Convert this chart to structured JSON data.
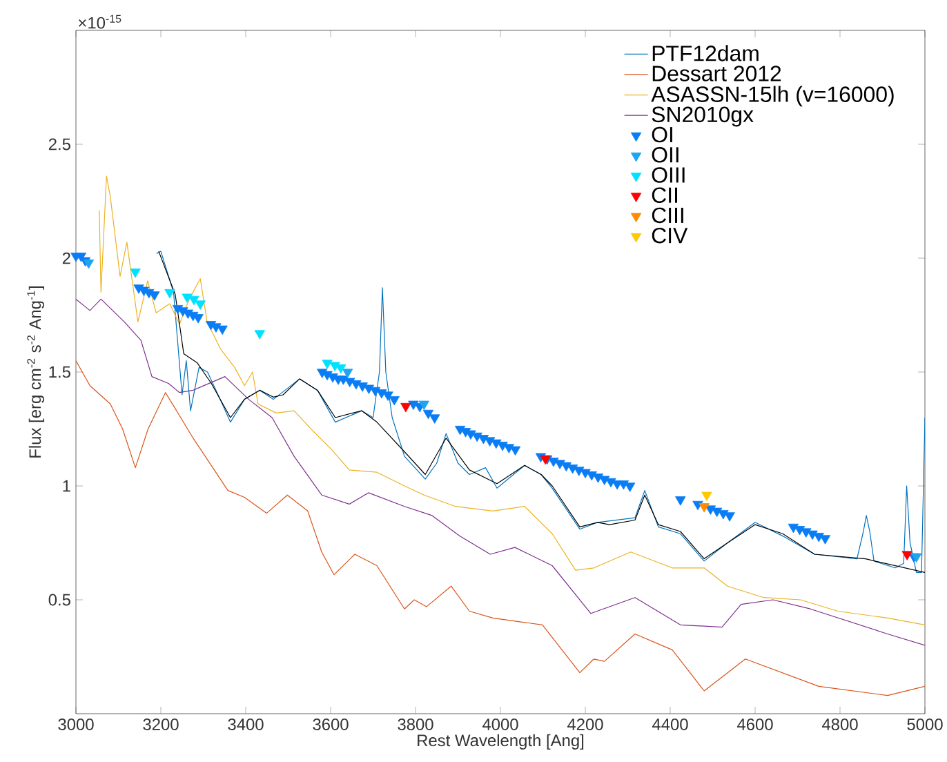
{
  "chart_data": {
    "type": "line",
    "xlabel": "Rest Wavelength [Ang]",
    "ylabel": "Flux [erg cm$^{-2}$ s$^{-2}$ Ang$^{-1}$]",
    "annotations": [
      "×10$^{-15}$"
    ],
    "xlim": [
      3000,
      5000
    ],
    "ylim": [
      0,
      3
    ],
    "xticks": [
      3000,
      3200,
      3400,
      3600,
      3800,
      4000,
      4200,
      4400,
      4600,
      4800,
      5000
    ],
    "yticks": [
      0.5,
      1,
      1.5,
      2,
      2.5
    ],
    "legend": "top right",
    "series": [
      {
        "name": "PTF12dam",
        "color": "#0072bd",
        "x": [
          3190,
          3200,
          3230,
          3250,
          3260,
          3270,
          3290,
          3310,
          3330,
          3364,
          3397,
          3433,
          3465,
          3527,
          3569,
          3611,
          3673,
          3700,
          3715,
          3722,
          3730,
          3745,
          3774,
          3823,
          3850,
          3872,
          3900,
          3927,
          3965,
          3992,
          4057,
          4096,
          4122,
          4187,
          4229,
          4317,
          4340,
          4372,
          4424,
          4480,
          4535,
          4600,
          4665,
          4740,
          4840,
          4855,
          4862,
          4870,
          4880,
          4930,
          4950,
          4957,
          4965,
          4980,
          4992,
          5000
        ],
        "values": [
          2.02,
          2.03,
          1.85,
          1.4,
          1.55,
          1.33,
          1.52,
          1.5,
          1.42,
          1.28,
          1.38,
          1.42,
          1.38,
          1.47,
          1.42,
          1.28,
          1.33,
          1.3,
          1.5,
          1.87,
          1.5,
          1.3,
          1.13,
          1.03,
          1.1,
          1.23,
          1.1,
          1.05,
          1.08,
          0.99,
          1.09,
          1.05,
          0.99,
          0.81,
          0.84,
          0.86,
          0.98,
          0.82,
          0.79,
          0.67,
          0.75,
          0.84,
          0.78,
          0.7,
          0.68,
          0.8,
          0.87,
          0.8,
          0.67,
          0.64,
          0.66,
          1.0,
          0.75,
          0.62,
          0.62,
          1.3
        ]
      },
      {
        "name": "Dessart 2012",
        "color": "#d95319",
        "x": [
          3000,
          3033,
          3081,
          3110,
          3140,
          3170,
          3211,
          3276,
          3358,
          3397,
          3449,
          3498,
          3546,
          3579,
          3608,
          3657,
          3709,
          3774,
          3797,
          3826,
          3884,
          3927,
          3982,
          4099,
          4187,
          4220,
          4245,
          4317,
          4405,
          4480,
          4577,
          4750,
          4912,
          5000
        ],
        "values": [
          1.55,
          1.44,
          1.36,
          1.25,
          1.08,
          1.25,
          1.41,
          1.21,
          0.98,
          0.95,
          0.88,
          0.96,
          0.89,
          0.71,
          0.61,
          0.7,
          0.65,
          0.46,
          0.5,
          0.47,
          0.56,
          0.45,
          0.42,
          0.39,
          0.18,
          0.24,
          0.23,
          0.35,
          0.28,
          0.1,
          0.24,
          0.12,
          0.08,
          0.12
        ]
      },
      {
        "name": "ASASSN-15lh (v=16000)",
        "color": "#edb120",
        "x": [
          3055,
          3059,
          3072,
          3081,
          3104,
          3120,
          3146,
          3169,
          3189,
          3221,
          3244,
          3267,
          3293,
          3309,
          3341,
          3374,
          3397,
          3416,
          3429,
          3472,
          3514,
          3559,
          3602,
          3644,
          3709,
          3774,
          3820,
          3894,
          3982,
          4057,
          4122,
          4177,
          4220,
          4307,
          4405,
          4480,
          4535,
          4620,
          4707,
          4795,
          4912,
          5000
        ],
        "values": [
          2.21,
          1.85,
          2.36,
          2.27,
          1.92,
          2.07,
          1.72,
          1.9,
          1.76,
          1.8,
          1.71,
          1.82,
          1.91,
          1.72,
          1.6,
          1.52,
          1.44,
          1.5,
          1.36,
          1.32,
          1.33,
          1.24,
          1.16,
          1.07,
          1.06,
          1.0,
          0.96,
          0.91,
          0.89,
          0.91,
          0.79,
          0.63,
          0.64,
          0.71,
          0.64,
          0.64,
          0.56,
          0.51,
          0.5,
          0.45,
          0.42,
          0.39
        ]
      },
      {
        "name": "SN2010gx",
        "color": "#7e2f8e",
        "x": [
          3000,
          3033,
          3059,
          3114,
          3153,
          3179,
          3218,
          3244,
          3276,
          3351,
          3407,
          3462,
          3514,
          3579,
          3644,
          3689,
          3774,
          3839,
          3904,
          3976,
          4034,
          4122,
          4213,
          4317,
          4424,
          4522,
          4567,
          4642,
          4730,
          4912,
          5000
        ],
        "values": [
          1.82,
          1.77,
          1.82,
          1.72,
          1.64,
          1.48,
          1.45,
          1.41,
          1.42,
          1.48,
          1.38,
          1.3,
          1.13,
          0.96,
          0.92,
          0.97,
          0.91,
          0.87,
          0.78,
          0.7,
          0.73,
          0.65,
          0.44,
          0.51,
          0.39,
          0.38,
          0.48,
          0.5,
          0.46,
          0.35,
          0.3
        ]
      },
      {
        "color": "#000000",
        "x": [
          3195,
          3234,
          3254,
          3286,
          3319,
          3364,
          3397,
          3433,
          3465,
          3488,
          3527,
          3569,
          3611,
          3673,
          3709,
          3774,
          3823,
          3872,
          3927,
          3992,
          4057,
          4096,
          4122,
          4187,
          4229,
          4257,
          4317,
          4340,
          4372,
          4424,
          4480,
          4535,
          4600,
          4665,
          4740,
          4860,
          5000
        ],
        "values": [
          2.03,
          1.84,
          1.58,
          1.54,
          1.45,
          1.3,
          1.38,
          1.42,
          1.39,
          1.4,
          1.47,
          1.42,
          1.3,
          1.33,
          1.28,
          1.15,
          1.05,
          1.21,
          1.07,
          1.01,
          1.09,
          1.05,
          1.0,
          0.82,
          0.84,
          0.83,
          0.85,
          0.96,
          0.83,
          0.8,
          0.68,
          0.75,
          0.83,
          0.79,
          0.7,
          0.68,
          0.62
        ]
      },
      {
        "name": "OI",
        "type": "scatter",
        "marker": "triangle",
        "color": "#0a7df5",
        "x": [
          3000,
          3012,
          3022,
          3148,
          3160,
          3172,
          3185,
          3240,
          3252,
          3264,
          3276,
          3288,
          3318,
          3330,
          3345,
          3580,
          3592,
          3605,
          3618,
          3630,
          3645,
          3660,
          3675,
          3690,
          3705,
          3720,
          3735,
          3750,
          3795,
          3810,
          3830,
          3845,
          3905,
          3918,
          3930,
          3945,
          3960,
          3975,
          3990,
          4005,
          4020,
          4035,
          4095,
          4110,
          4125,
          4140,
          4155,
          4170,
          4185,
          4200,
          4215,
          4230,
          4245,
          4260,
          4275,
          4290,
          4305,
          4424,
          4465,
          4495,
          4510,
          4525,
          4540,
          4690,
          4705,
          4720,
          4735,
          4750,
          4765,
          4974
        ],
        "values": [
          2.01,
          2.01,
          1.99,
          1.87,
          1.86,
          1.85,
          1.84,
          1.78,
          1.77,
          1.76,
          1.75,
          1.74,
          1.71,
          1.7,
          1.69,
          1.5,
          1.49,
          1.48,
          1.47,
          1.47,
          1.46,
          1.45,
          1.44,
          1.43,
          1.42,
          1.41,
          1.4,
          1.38,
          1.36,
          1.35,
          1.32,
          1.3,
          1.25,
          1.24,
          1.23,
          1.22,
          1.21,
          1.2,
          1.19,
          1.18,
          1.17,
          1.16,
          1.13,
          1.12,
          1.11,
          1.1,
          1.09,
          1.08,
          1.07,
          1.06,
          1.05,
          1.04,
          1.03,
          1.02,
          1.01,
          1.01,
          1.0,
          0.94,
          0.92,
          0.9,
          0.89,
          0.88,
          0.87,
          0.82,
          0.81,
          0.8,
          0.79,
          0.78,
          0.77,
          0.69
        ]
      },
      {
        "name": "OII",
        "type": "scatter",
        "marker": "triangle",
        "color": "#1ea5f0",
        "x": [
          3030,
          3640,
          3820,
          4980
        ],
        "values": [
          1.98,
          1.5,
          1.36,
          0.69
        ]
      },
      {
        "name": "OIII",
        "type": "scatter",
        "marker": "triangle",
        "color": "#00e1ff",
        "x": [
          3140,
          3221,
          3262,
          3278,
          3293,
          3433,
          3592,
          3610,
          3624
        ],
        "values": [
          1.94,
          1.85,
          1.83,
          1.82,
          1.8,
          1.67,
          1.54,
          1.53,
          1.52
        ]
      },
      {
        "name": "CII",
        "type": "scatter",
        "marker": "triangle",
        "color": "#ff0000",
        "x": [
          3777,
          4106,
          4958
        ],
        "values": [
          1.35,
          1.12,
          0.7
        ]
      },
      {
        "name": "CIII",
        "type": "scatter",
        "marker": "triangle",
        "color": "#ff8c00",
        "x": [
          4480
        ],
        "values": [
          0.91
        ]
      },
      {
        "name": "CIV",
        "type": "scatter",
        "marker": "triangle",
        "color": "#ffc800",
        "x": [
          4486
        ],
        "values": [
          0.96
        ]
      }
    ]
  }
}
